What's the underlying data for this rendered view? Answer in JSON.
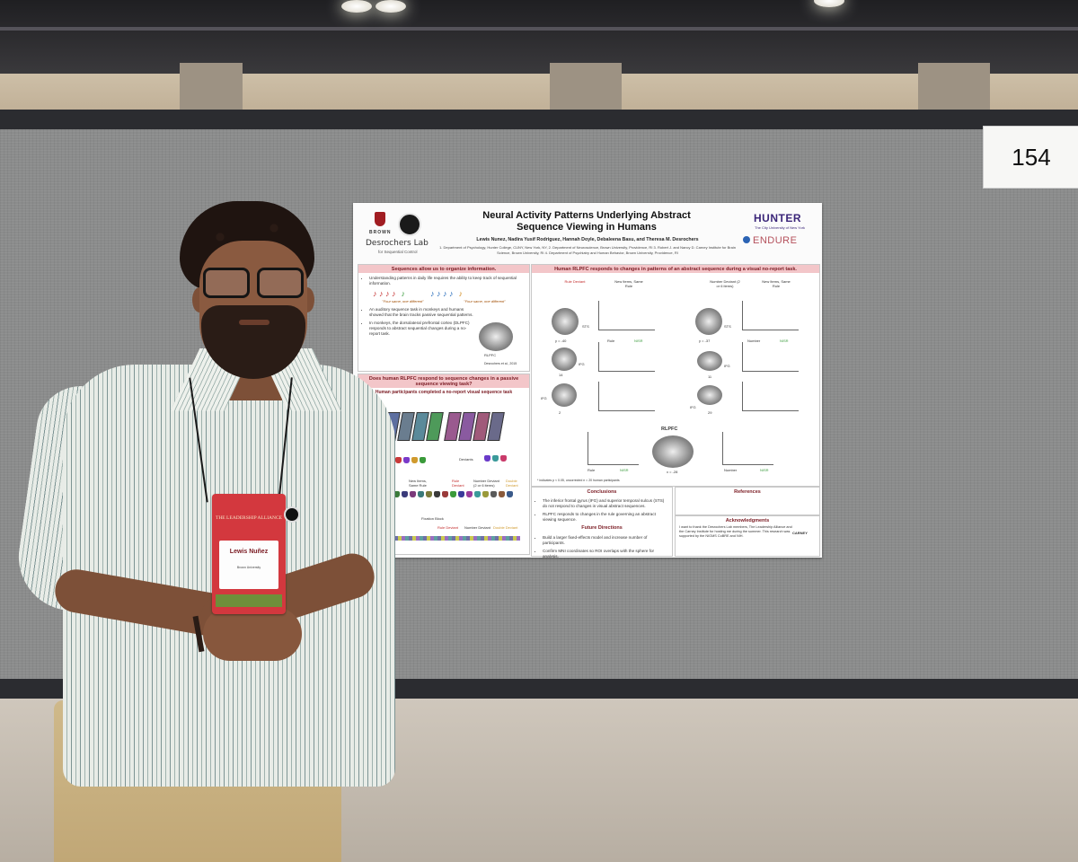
{
  "booth": {
    "number": "154"
  },
  "poster": {
    "title": "Neural Activity Patterns Underlying Abstract Sequence Viewing in Humans",
    "authors": "Lewis Nunez, Nadira Yusif Rodriguez, Hannah Doyle, Debaleena Basu, and Theresa M. Desrochers",
    "affiliations": "1. Department of Psychology, Hunter College, CUNY, New York, NY, 2. Department of Neuroscience, Brown University, Providence, RI 3. Robert J. and Nancy D. Carney Institute for Brain Science, Brown University, RI 4. Department of Psychiatry and Human Behavior, Brown University, Providence, RI",
    "logos": {
      "brown": "BROWN",
      "lab": "Desrochers Lab",
      "lab_sub": "for Sequential Control",
      "hunter": "HUNTER",
      "hunter_sub": "The City University of New York",
      "endure": "ENDURE"
    },
    "intro": {
      "heading": "Sequences allow us to organize information.",
      "bullets": [
        "Understanding patterns in daily life requires the ability to keep track of sequential information.",
        "An auditory sequence task in monkeys and humans showed that the brain tracks passive sequential patterns.",
        "In monkeys, the dorsolateral prefrontal cortex (DLPFC) responds to abstract sequential changes during a no-report task."
      ],
      "quote_left": "\"Four same, one different\"",
      "quote_right": "\"Four same, one different\"",
      "brain_label": "RLPFC",
      "citation": "Desrochers et al., 2015"
    },
    "question": {
      "heading": "Does human RLPFC respond to sequence changes in a passive sequence viewing task?",
      "subheading": "Human participants completed a no-report visual sequence task",
      "stimuli_label": "Stimuli Pool",
      "deviants_label": "Deviants",
      "types_label": "Types:",
      "type_labels": [
        "New Items, Same Rule",
        "Rule Deviant",
        "Number Deviant (2 or 6 items)",
        "Double Deviant"
      ],
      "block_labels": [
        "Fixation Block",
        "Rule Deviant",
        "Number Deviant",
        "Double Deviant"
      ]
    },
    "results": {
      "heading": "Human RLPFC responds to changes in patterns of an abstract sequence during a visual no-report task.",
      "left_panel_title": "Rule Deviant",
      "left_compare": "New Items, Same Rule",
      "right_panel_title": "Number Deviant (2 or 6 items)",
      "right_compare": "New Items, Same Rule",
      "region_labels": [
        "STS",
        "IFG",
        "IFG"
      ],
      "coords_left": [
        "y = -40",
        "14",
        "2"
      ],
      "coords_right": [
        "y = -37",
        "11",
        "29"
      ],
      "x_labels_left": [
        "Rule",
        "NISR"
      ],
      "x_labels_right": [
        "Number",
        "NISR"
      ],
      "rlpfc_label": "RLPFC",
      "rlpfc_coord": "x = -28",
      "footnote": "* indicates p < 0.05, uncorrected    n = 20 human participants"
    },
    "conclusions": {
      "heading": "Conclusions",
      "bullets": [
        "The inferior frontal gyrus (IFG) and superior temporal sulcus (STS) do not respond to changes in visual abstract sequences.",
        "RLPFC responds to changes in the rule governing an abstract viewing sequence."
      ]
    },
    "future": {
      "heading": "Future Directions",
      "bullets": [
        "Build a larger fixed-effects model and increase number of participants.",
        "Confirm MNI coordinates so ROI overlaps with the sphere for analysis."
      ]
    },
    "references": {
      "heading": "References"
    },
    "acknowledgments": {
      "heading": "Acknowledgments",
      "text": "I want to thank the Desrochers Lab members, The Leadership Alliance and the Carney Institute for hosting me during the summer. This research was supported by the NIGMS CoBRE and NIH.",
      "logo": "CARNEY"
    }
  },
  "badge": {
    "org": "THE LEADERSHIP ALLIANCE",
    "name": "Lewis Nuñez",
    "school": "Brown University"
  },
  "colors": {
    "poster_accent": "#f3c6c9",
    "poster_accent_text": "#7a1a22",
    "badge": "#d3383e"
  }
}
